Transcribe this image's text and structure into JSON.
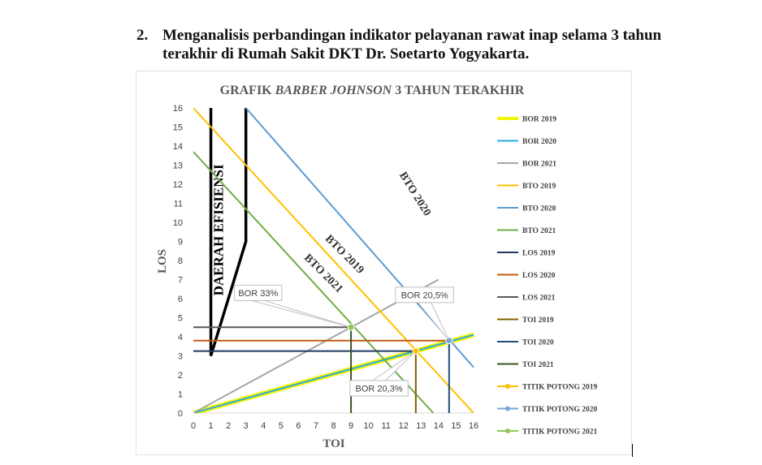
{
  "heading": {
    "number": "2.",
    "text": "Menganalisis perbandingan indikator pelayanan rawat inap selama 3 tahun terakhir di Rumah Sakit DKT Dr. Soetarto Yogyakarta."
  },
  "chart_data": {
    "type": "line",
    "title_parts": [
      "GRAFIK ",
      "BARBER JOHNSON",
      " 3 TAHUN TERAKHIR"
    ],
    "xlabel": "TOI",
    "ylabel": "LOS",
    "xlim": [
      0,
      16
    ],
    "ylim": [
      0,
      16
    ],
    "x_ticks": [
      "0",
      "1",
      "2",
      "3",
      "4",
      "5",
      "6",
      "7",
      "8",
      "9",
      "10",
      "11",
      "12",
      "13",
      "14",
      "15",
      "16"
    ],
    "y_ticks": [
      "0",
      "1",
      "2",
      "3",
      "4",
      "5",
      "6",
      "7",
      "8",
      "9",
      "10",
      "11",
      "12",
      "13",
      "14",
      "15",
      "16"
    ],
    "grid": false,
    "legend_position": "right",
    "series": [
      {
        "name": "BOR 2019",
        "color": "#f5f500",
        "width": 6,
        "points": [
          [
            0,
            0
          ],
          [
            16,
            4.1
          ]
        ]
      },
      {
        "name": "BOR 2020",
        "color": "#29a9e0",
        "width": 2,
        "points": [
          [
            0,
            0
          ],
          [
            16,
            4.1
          ]
        ]
      },
      {
        "name": "BOR 2021",
        "color": "#a6a6a6",
        "width": 2,
        "points": [
          [
            0,
            0
          ],
          [
            14,
            7
          ]
        ]
      },
      {
        "name": "BTO 2019",
        "color": "#ffc000",
        "width": 2,
        "points": [
          [
            0,
            16
          ],
          [
            16,
            0
          ]
        ]
      },
      {
        "name": "BTO 2020",
        "color": "#5b9bd5",
        "width": 2,
        "points": [
          [
            3,
            16
          ],
          [
            16,
            2.4
          ]
        ]
      },
      {
        "name": "BTO 2021",
        "color": "#70ad47",
        "width": 2,
        "points": [
          [
            0,
            13.7
          ],
          [
            13.7,
            0
          ]
        ]
      },
      {
        "name": "LOS 2019",
        "color": "#1f3864",
        "width": 2,
        "points": [
          [
            0,
            3.25
          ],
          [
            12.7,
            3.25
          ]
        ]
      },
      {
        "name": "LOS 2020",
        "color": "#c55a11",
        "width": 2,
        "points": [
          [
            0,
            3.8
          ],
          [
            14.6,
            3.8
          ]
        ]
      },
      {
        "name": "LOS 2021",
        "color": "#595959",
        "width": 2,
        "points": [
          [
            0,
            4.5
          ],
          [
            9,
            4.5
          ]
        ]
      },
      {
        "name": "TOI 2019",
        "color": "#806000",
        "width": 2,
        "points": [
          [
            12.7,
            0
          ],
          [
            12.7,
            3.25
          ]
        ]
      },
      {
        "name": "TOI 2020",
        "color": "#1f4e79",
        "width": 2,
        "points": [
          [
            14.6,
            0
          ],
          [
            14.6,
            3.8
          ]
        ]
      },
      {
        "name": "TOI 2021",
        "color": "#375623",
        "width": 2,
        "points": [
          [
            9,
            0
          ],
          [
            9,
            4.5
          ]
        ]
      },
      {
        "name": "TITIK POTONG 2019",
        "color": "#ffc000",
        "marker": true,
        "points": [
          [
            12.7,
            3.25
          ]
        ]
      },
      {
        "name": "TITIK POTONG 2020",
        "color": "#7aa6dc",
        "marker": true,
        "points": [
          [
            14.6,
            3.8
          ]
        ]
      },
      {
        "name": "TITIK POTONG 2021",
        "color": "#92c45a",
        "marker": true,
        "points": [
          [
            9,
            4.5
          ]
        ]
      }
    ],
    "efficiency_region": {
      "label": "DAERAH EFISIENSI",
      "points": [
        [
          1,
          16
        ],
        [
          1,
          3
        ],
        [
          3,
          9
        ],
        [
          3,
          16
        ]
      ]
    },
    "line_labels": [
      {
        "text": "BTO 2020",
        "x": 12.5,
        "y": 11.4,
        "angle": 58
      },
      {
        "text": "BTO 2019",
        "x": 8.5,
        "y": 8.2,
        "angle": 45
      },
      {
        "text": "BTO 2021",
        "x": 7.3,
        "y": 7.2,
        "angle": 45
      }
    ],
    "callouts": [
      {
        "text": "BOR 33%",
        "box": [
          3.7,
          6.3
        ],
        "target": [
          9,
          4.5
        ]
      },
      {
        "text": "BOR 20,5%",
        "box": [
          13.2,
          6.2
        ],
        "target": [
          14.6,
          3.8
        ]
      },
      {
        "text": "BOR 20,3%",
        "box": [
          10.6,
          1.3
        ],
        "target": [
          12.7,
          3.25
        ]
      }
    ]
  }
}
